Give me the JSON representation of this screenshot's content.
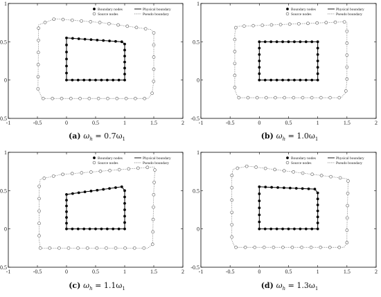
{
  "legend_labels": {
    "boundary_nodes": "Boundary nodes",
    "source_nodes": "Source nodes",
    "physical_boundary": "Physical boundary",
    "pseudo_boundary": "Pseudo boundary"
  },
  "colors": {
    "boundary": "#000000",
    "pseudo": "#6e6e6e",
    "axis": "#000000"
  },
  "chart_data": [
    {
      "type": "scatter",
      "caption": {
        "letter": "(a)",
        "lhs": "ω",
        "sub": "h",
        "rhs": " = 0.7ω",
        "sub2": "1"
      },
      "xlim": [
        -1,
        2
      ],
      "ylim": [
        -0.5,
        1
      ],
      "x_ticks": [
        -1,
        -0.5,
        0,
        0.5,
        1,
        1.5,
        2
      ],
      "y_ticks": [
        -0.5,
        0,
        0.5,
        1
      ],
      "x_tick_labels": [
        "-1",
        "-0.5",
        "0",
        "0.5",
        "1",
        "1.5",
        "2"
      ],
      "y_tick_labels": [
        "-0.5",
        "0",
        "0.5",
        "1"
      ],
      "legend_position": "top-right",
      "physical_boundary": [
        [
          0,
          0
        ],
        [
          1,
          0
        ],
        [
          1,
          0.47
        ],
        [
          0.95,
          0.5
        ],
        [
          0,
          0.55
        ]
      ],
      "pseudo_boundary": [
        [
          -0.4,
          -0.24
        ],
        [
          1.4,
          -0.24
        ],
        [
          1.47,
          -0.18
        ],
        [
          1.5,
          0
        ],
        [
          1.5,
          0.62
        ],
        [
          1.45,
          0.66
        ],
        [
          0.6,
          0.75
        ],
        [
          -0.2,
          0.8
        ],
        [
          -0.48,
          0.72
        ],
        [
          -0.49,
          -0.12
        ],
        [
          -0.43,
          -0.22
        ]
      ],
      "boundary_nodes_per_side": [
        10,
        6,
        10,
        6
      ],
      "source_nodes_count": 36
    },
    {
      "type": "scatter",
      "caption": {
        "letter": "(b)",
        "lhs": "ω",
        "sub": "h",
        "rhs": " = 1.0ω",
        "sub2": "1"
      },
      "xlim": [
        -1,
        2
      ],
      "ylim": [
        -0.5,
        1
      ],
      "x_ticks": [
        -1,
        -0.5,
        0,
        0.5,
        1,
        1.5,
        2
      ],
      "y_ticks": [
        -0.5,
        0,
        0.5,
        1
      ],
      "x_tick_labels": [
        "-1",
        "-0.5",
        "0",
        "0.5",
        "1",
        "1.5",
        "2"
      ],
      "y_tick_labels": [
        "-0.5",
        "0",
        "0.5",
        "1"
      ],
      "legend_position": "top-right",
      "physical_boundary": [
        [
          0,
          0
        ],
        [
          1,
          0
        ],
        [
          1,
          0.5
        ],
        [
          0,
          0.5
        ]
      ],
      "pseudo_boundary": [
        [
          -0.35,
          -0.23
        ],
        [
          1.4,
          -0.23
        ],
        [
          1.48,
          -0.16
        ],
        [
          1.5,
          0
        ],
        [
          1.5,
          0.75
        ],
        [
          1.45,
          0.76
        ],
        [
          -0.4,
          0.7
        ],
        [
          -0.42,
          0.6
        ],
        [
          -0.42,
          -0.12
        ],
        [
          -0.38,
          -0.2
        ]
      ],
      "boundary_nodes_per_side": [
        10,
        6,
        10,
        6
      ],
      "source_nodes_count": 36
    },
    {
      "type": "scatter",
      "caption": {
        "letter": "(c)",
        "lhs": "ω",
        "sub": "h",
        "rhs": " = 1.1ω",
        "sub2": "1"
      },
      "xlim": [
        -1,
        2
      ],
      "ylim": [
        -0.5,
        1
      ],
      "x_ticks": [
        -1,
        -0.5,
        0,
        0.5,
        1,
        1.5,
        2
      ],
      "y_ticks": [
        -0.5,
        0,
        0.5,
        1
      ],
      "x_tick_labels": [
        "-1",
        "-0.5",
        "0",
        "0.5",
        "1",
        "1.5",
        "2"
      ],
      "y_tick_labels": [
        "-0.5",
        "0",
        "0.5",
        "1"
      ],
      "legend_position": "top-right",
      "physical_boundary": [
        [
          0,
          0
        ],
        [
          1,
          0
        ],
        [
          1,
          0.5
        ],
        [
          0.95,
          0.55
        ],
        [
          0,
          0.45
        ]
      ],
      "pseudo_boundary": [
        [
          -0.45,
          -0.25
        ],
        [
          1.4,
          -0.25
        ],
        [
          1.48,
          -0.2
        ],
        [
          1.5,
          0.5
        ],
        [
          1.52,
          0.8
        ],
        [
          1.5,
          0.81
        ],
        [
          -0.1,
          0.71
        ],
        [
          -0.45,
          0.65
        ],
        [
          -0.47,
          0.55
        ],
        [
          -0.47,
          -0.15
        ]
      ],
      "boundary_nodes_per_side": [
        10,
        6,
        10,
        6
      ],
      "source_nodes_count": 36
    },
    {
      "type": "scatter",
      "caption": {
        "letter": "(d)",
        "lhs": "ω",
        "sub": "h",
        "rhs": " = 1.3ω",
        "sub2": "1"
      },
      "xlim": [
        -1,
        2
      ],
      "ylim": [
        -0.5,
        1
      ],
      "x_ticks": [
        -1,
        -0.5,
        0,
        0.5,
        1,
        1.5,
        2
      ],
      "y_ticks": [
        -0.5,
        0,
        0.5,
        1
      ],
      "x_tick_labels": [
        "-1",
        "-0.5",
        "0",
        "0.5",
        "1",
        "1.5",
        "2"
      ],
      "y_tick_labels": [
        "-0.5",
        "0",
        "0.5",
        "1"
      ],
      "legend_position": "top-right",
      "physical_boundary": [
        [
          0,
          0
        ],
        [
          1,
          0
        ],
        [
          1,
          0.47
        ],
        [
          0.95,
          0.52
        ],
        [
          0,
          0.55
        ]
      ],
      "pseudo_boundary": [
        [
          -0.4,
          -0.24
        ],
        [
          1.45,
          -0.24
        ],
        [
          1.5,
          -0.18
        ],
        [
          1.5,
          0
        ],
        [
          1.52,
          0.65
        ],
        [
          1.45,
          0.66
        ],
        [
          -0.2,
          0.82
        ],
        [
          -0.45,
          0.78
        ],
        [
          -0.47,
          0.7
        ],
        [
          -0.47,
          -0.15
        ],
        [
          -0.43,
          -0.22
        ]
      ],
      "boundary_nodes_per_side": [
        10,
        6,
        10,
        6
      ],
      "source_nodes_count": 36
    }
  ]
}
